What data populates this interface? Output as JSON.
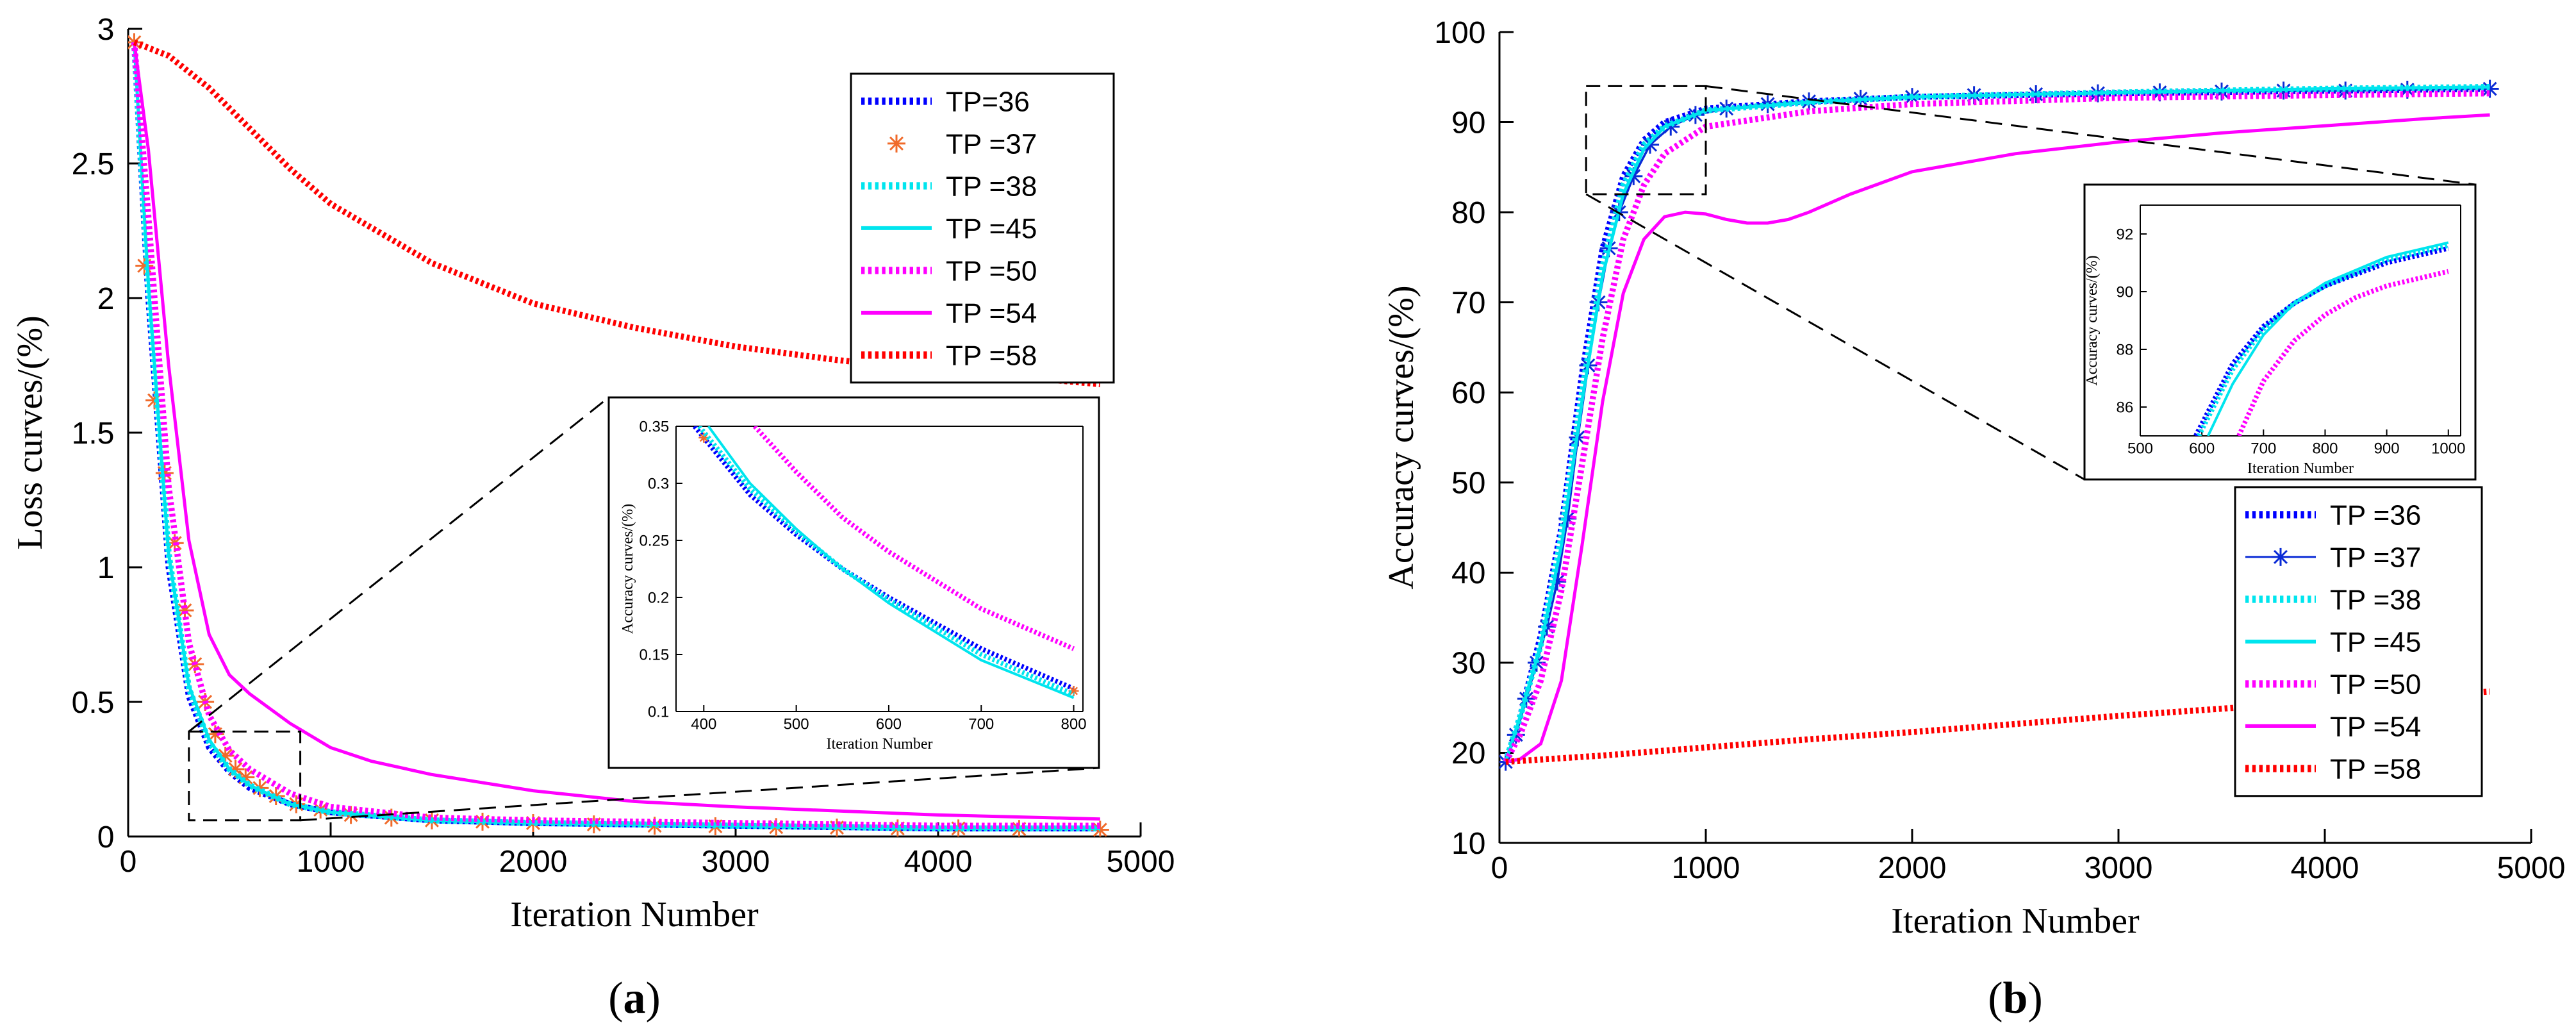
{
  "colors": {
    "tp36": "#0000ff",
    "tp37_a": "#f06a2a",
    "tp37_b": "#0a2bd6",
    "tp38": "#00e5ee",
    "tp45": "#00e5ee",
    "tp50": "#ff00ff",
    "tp54": "#ff00ff",
    "tp58": "#ff0000",
    "axis": "#000000"
  },
  "chart_data": [
    {
      "id": "a",
      "type": "line",
      "caption": "(a)",
      "caption_letter": "a",
      "xlabel": "Iteration Number",
      "ylabel": "Loss curves/(%)",
      "xlim": [
        0,
        5000
      ],
      "ylim": [
        0,
        3
      ],
      "xticks": [
        0,
        1000,
        2000,
        3000,
        4000,
        5000
      ],
      "yticks": [
        0,
        0.5,
        1,
        1.5,
        2,
        2.5,
        3
      ],
      "ytick_labels": [
        "0",
        "0.5",
        "1",
        "1.5",
        "2",
        "2.5",
        "3"
      ],
      "legend": [
        "TP=36",
        "TP =37",
        "TP =38",
        "TP =45",
        "TP =50",
        "TP =54",
        "TP =58"
      ],
      "series": [
        {
          "name": "TP=36",
          "style": "dotted",
          "color": "#0000ff",
          "x": [
            30,
            100,
            200,
            300,
            400,
            500,
            600,
            800,
            1000,
            1500,
            2000,
            3000,
            4000,
            4800
          ],
          "y": [
            2.95,
            2.0,
            1.0,
            0.52,
            0.33,
            0.24,
            0.18,
            0.12,
            0.09,
            0.06,
            0.05,
            0.04,
            0.03,
            0.03
          ]
        },
        {
          "name": "TP =37",
          "style": "markers",
          "color": "#f06a2a",
          "x": [
            30,
            80,
            130,
            180,
            230,
            280,
            330,
            380,
            430,
            480,
            530,
            580,
            650,
            730,
            830,
            950,
            1100,
            1300,
            1500,
            1750,
            2000,
            2300,
            2600,
            2900,
            3200,
            3500,
            3800,
            4100,
            4400,
            4800
          ],
          "y": [
            2.95,
            2.12,
            1.62,
            1.35,
            1.09,
            0.84,
            0.64,
            0.5,
            0.38,
            0.3,
            0.25,
            0.22,
            0.18,
            0.15,
            0.12,
            0.1,
            0.08,
            0.07,
            0.06,
            0.055,
            0.05,
            0.045,
            0.04,
            0.038,
            0.035,
            0.033,
            0.03,
            0.03,
            0.028,
            0.025
          ]
        },
        {
          "name": "TP =38",
          "style": "dotted",
          "color": "#00e5ee",
          "x": [
            30,
            100,
            200,
            300,
            400,
            500,
            600,
            800,
            1000,
            1500,
            2000,
            3000,
            4000,
            4800
          ],
          "y": [
            2.95,
            2.05,
            1.05,
            0.55,
            0.35,
            0.25,
            0.19,
            0.12,
            0.09,
            0.06,
            0.05,
            0.04,
            0.03,
            0.03
          ]
        },
        {
          "name": "TP =45",
          "style": "solid",
          "color": "#00e5ee",
          "x": [
            30,
            100,
            200,
            300,
            400,
            500,
            600,
            800,
            1000,
            1500,
            2000,
            3000,
            4000,
            4800
          ],
          "y": [
            2.95,
            2.05,
            1.05,
            0.56,
            0.36,
            0.25,
            0.19,
            0.12,
            0.09,
            0.06,
            0.05,
            0.04,
            0.03,
            0.03
          ]
        },
        {
          "name": "TP =50",
          "style": "dotted",
          "color": "#ff00ff",
          "x": [
            30,
            100,
            200,
            300,
            400,
            500,
            600,
            800,
            1000,
            1500,
            2000,
            3000,
            4000,
            4800
          ],
          "y": [
            2.95,
            2.3,
            1.3,
            0.72,
            0.45,
            0.32,
            0.25,
            0.16,
            0.11,
            0.07,
            0.06,
            0.05,
            0.04,
            0.04
          ]
        },
        {
          "name": "TP =54",
          "style": "solid",
          "color": "#ff00ff",
          "x": [
            30,
            100,
            200,
            300,
            400,
            500,
            600,
            800,
            1000,
            1200,
            1500,
            2000,
            2500,
            3000,
            4000,
            4800
          ],
          "y": [
            2.95,
            2.55,
            1.75,
            1.1,
            0.75,
            0.6,
            0.53,
            0.42,
            0.33,
            0.28,
            0.23,
            0.17,
            0.13,
            0.11,
            0.08,
            0.065
          ]
        },
        {
          "name": "TP =58",
          "style": "dotted",
          "color": "#ff0000",
          "x": [
            30,
            200,
            400,
            600,
            800,
            1000,
            1500,
            2000,
            2500,
            3000,
            3500,
            4000,
            4500,
            4800
          ],
          "y": [
            2.95,
            2.9,
            2.78,
            2.63,
            2.48,
            2.35,
            2.13,
            1.98,
            1.89,
            1.82,
            1.77,
            1.73,
            1.7,
            1.68
          ]
        }
      ],
      "inset": {
        "xlabel": "Iteration Number",
        "ylabel": "Accuracy curves/(%)",
        "xlim": [
          370,
          810
        ],
        "ylim": [
          0.1,
          0.35
        ],
        "xticks": [
          400,
          500,
          600,
          700,
          800
        ],
        "yticks": [
          0.1,
          0.15,
          0.2,
          0.25,
          0.3,
          0.35
        ],
        "ytick_labels": [
          "0.1",
          "0.15",
          "0.2",
          "0.25",
          "0.3",
          "0.35"
        ],
        "zoom_region": {
          "x": [
            300,
            850
          ],
          "y": [
            0.06,
            0.39
          ]
        },
        "series": [
          {
            "name": "TP=36",
            "style": "dotted",
            "color": "#0000ff",
            "x": [
              390,
              450,
              500,
              550,
              600,
              700,
              800
            ],
            "y": [
              0.35,
              0.29,
              0.255,
              0.225,
              0.2,
              0.155,
              0.12
            ]
          },
          {
            "name": "TP =37",
            "style": "markers",
            "color": "#f06a2a",
            "x": [
              400,
              800
            ],
            "y": [
              0.34,
              0.118
            ]
          },
          {
            "name": "TP =38",
            "style": "dotted",
            "color": "#00e5ee",
            "x": [
              395,
              450,
              500,
              550,
              600,
              700,
              800
            ],
            "y": [
              0.35,
              0.295,
              0.258,
              0.225,
              0.198,
              0.15,
              0.115
            ]
          },
          {
            "name": "TP =45",
            "style": "solid",
            "color": "#00e5ee",
            "x": [
              405,
              450,
              500,
              550,
              600,
              700,
              800
            ],
            "y": [
              0.35,
              0.3,
              0.26,
              0.225,
              0.195,
              0.145,
              0.112
            ]
          },
          {
            "name": "TP =50",
            "style": "dotted",
            "color": "#ff00ff",
            "x": [
              455,
              500,
              550,
              600,
              700,
              800
            ],
            "y": [
              0.35,
              0.31,
              0.27,
              0.24,
              0.19,
              0.155
            ]
          }
        ]
      }
    },
    {
      "id": "b",
      "type": "line",
      "caption": "(b)",
      "caption_letter": "b",
      "xlabel": "Iteration Number",
      "ylabel": "Accuracy curves/(%)",
      "xlim": [
        0,
        5000
      ],
      "ylim": [
        10,
        100
      ],
      "xticks": [
        0,
        1000,
        2000,
        3000,
        4000,
        5000
      ],
      "yticks": [
        10,
        20,
        30,
        40,
        50,
        60,
        70,
        80,
        90,
        100
      ],
      "ytick_labels": [
        "10",
        "20",
        "30",
        "40",
        "50",
        "60",
        "70",
        "80",
        "90",
        "100"
      ],
      "legend": [
        "TP =36",
        "TP =37",
        "TP =38",
        "TP =45",
        "TP =50",
        "TP =54",
        "TP =58"
      ],
      "series": [
        {
          "name": "TP =36",
          "style": "dotted",
          "color": "#0000ff",
          "x": [
            30,
            100,
            200,
            300,
            400,
            500,
            600,
            700,
            800,
            1000,
            1500,
            2000,
            3000,
            4000,
            4800
          ],
          "y": [
            19,
            24,
            33,
            45,
            62,
            76,
            84,
            88,
            90,
            91.5,
            92.3,
            92.8,
            93.2,
            93.5,
            93.7
          ]
        },
        {
          "name": "TP =37",
          "style": "markers",
          "color": "#0a2bd6",
          "x": [
            30,
            80,
            130,
            180,
            230,
            280,
            330,
            380,
            430,
            480,
            530,
            580,
            650,
            730,
            830,
            950,
            1100,
            1300,
            1500,
            1750,
            2000,
            2300,
            2600,
            2900,
            3200,
            3500,
            3800,
            4100,
            4400,
            4800
          ],
          "y": [
            19,
            22,
            26,
            30,
            34,
            39,
            46,
            55,
            63,
            70,
            76,
            80,
            84,
            87.5,
            89.5,
            90.8,
            91.5,
            92,
            92.3,
            92.6,
            92.8,
            93,
            93.1,
            93.2,
            93.3,
            93.4,
            93.5,
            93.5,
            93.6,
            93.7
          ]
        },
        {
          "name": "TP =38",
          "style": "dotted",
          "color": "#00e5ee",
          "x": [
            30,
            100,
            200,
            300,
            400,
            500,
            600,
            700,
            800,
            1000,
            1500,
            2000,
            3000,
            4000,
            4800
          ],
          "y": [
            19,
            24,
            32,
            44,
            60,
            74,
            83,
            87.5,
            89.5,
            91.3,
            92.2,
            92.8,
            93.3,
            93.7,
            93.9
          ]
        },
        {
          "name": "TP =45",
          "style": "solid",
          "color": "#00e5ee",
          "x": [
            30,
            100,
            200,
            300,
            400,
            500,
            600,
            700,
            800,
            1000,
            1500,
            2000,
            3000,
            4000,
            4800
          ],
          "y": [
            19,
            24,
            32,
            43,
            59,
            73,
            82,
            87,
            89.5,
            91.3,
            92.2,
            92.8,
            93.3,
            93.7,
            93.9
          ]
        },
        {
          "name": "TP =50",
          "style": "dotted",
          "color": "#ff00ff",
          "x": [
            30,
            100,
            200,
            300,
            400,
            500,
            600,
            700,
            800,
            1000,
            1500,
            2000,
            3000,
            4000,
            4800
          ],
          "y": [
            19,
            22,
            28,
            38,
            52,
            66,
            77,
            83,
            86.5,
            89.5,
            91.2,
            92,
            92.7,
            93,
            93.2
          ]
        },
        {
          "name": "TP =54",
          "style": "solid",
          "color": "#ff00ff",
          "x": [
            30,
            100,
            200,
            300,
            400,
            500,
            600,
            700,
            800,
            900,
            1000,
            1100,
            1200,
            1300,
            1400,
            1500,
            1700,
            2000,
            2500,
            3000,
            3500,
            4000,
            4500,
            4800
          ],
          "y": [
            19,
            19.3,
            21,
            28,
            43,
            59,
            71,
            77,
            79.5,
            80,
            79.8,
            79.2,
            78.8,
            78.8,
            79.2,
            80,
            82,
            84.5,
            86.5,
            87.8,
            88.8,
            89.6,
            90.4,
            90.8
          ]
        },
        {
          "name": "TP =58",
          "style": "dotted",
          "color": "#ff0000",
          "x": [
            30,
            500,
            1000,
            1500,
            2000,
            2500,
            3000,
            3500,
            4000,
            4500,
            4800
          ],
          "y": [
            19,
            19.7,
            20.6,
            21.5,
            22.3,
            23.2,
            24.1,
            24.9,
            25.7,
            26.4,
            26.8
          ]
        }
      ],
      "inset": {
        "xlabel": "Iteration Number",
        "ylabel": "Accuracy curves/(%)",
        "xlim": [
          500,
          1020
        ],
        "ylim": [
          85,
          93
        ],
        "xticks": [
          500,
          600,
          700,
          800,
          900,
          1000
        ],
        "yticks": [
          86,
          88,
          90,
          92
        ],
        "ytick_labels": [
          "86",
          "88",
          "90",
          "92"
        ],
        "zoom_region": {
          "x": [
            420,
            1000
          ],
          "y": [
            82,
            94
          ]
        },
        "series": [
          {
            "name": "TP =36",
            "style": "dotted",
            "color": "#0000ff",
            "x": [
              590,
              650,
              700,
              750,
              800,
              900,
              1000
            ],
            "y": [
              85,
              87.5,
              88.8,
              89.6,
              90.2,
              91,
              91.5
            ]
          },
          {
            "name": "TP =38",
            "style": "dotted",
            "color": "#00e5ee",
            "x": [
              595,
              650,
              700,
              750,
              800,
              900,
              1000
            ],
            "y": [
              85,
              87.3,
              88.7,
              89.6,
              90.2,
              91.1,
              91.6
            ]
          },
          {
            "name": "TP =45",
            "style": "solid",
            "color": "#00e5ee",
            "x": [
              610,
              650,
              700,
              750,
              800,
              900,
              1000
            ],
            "y": [
              85,
              86.8,
              88.5,
              89.6,
              90.3,
              91.2,
              91.7
            ]
          },
          {
            "name": "TP =50",
            "style": "dotted",
            "color": "#ff00ff",
            "x": [
              660,
              700,
              750,
              800,
              850,
              900,
              1000
            ],
            "y": [
              85,
              86.9,
              88.3,
              89.2,
              89.8,
              90.2,
              90.7
            ]
          }
        ]
      }
    }
  ]
}
